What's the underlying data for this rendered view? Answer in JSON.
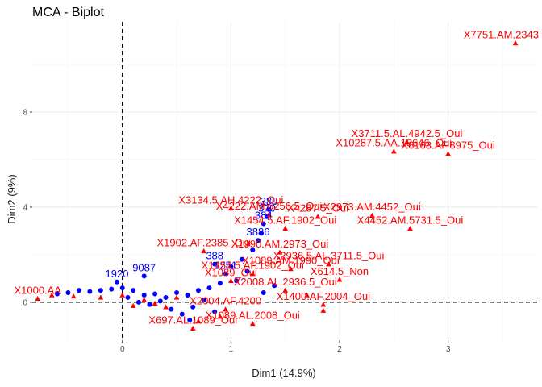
{
  "chart_data": {
    "type": "scatter",
    "title": "MCA - Biplot",
    "xlabel": "Dim1 (14.9%)",
    "ylabel": "Dim2 (9%)",
    "xlim": [
      -0.83,
      3.82
    ],
    "ylim": [
      -1.6,
      11.8
    ],
    "x_ticks": [
      0,
      1,
      2,
      3
    ],
    "y_ticks": [
      0,
      4,
      8
    ],
    "reference_lines": {
      "x": 0,
      "y": 0,
      "style": "dashed"
    },
    "grid": true,
    "legend": "none",
    "colors": {
      "individuals": "#0000ff",
      "variables": "#ff0000"
    },
    "series": [
      {
        "marker": "circle",
        "color": "#0000ff",
        "points": [
          {
            "x": 1.35,
            "y": 3.9,
            "label": "380"
          },
          {
            "x": 1.33,
            "y": 3.6,
            "label": "370"
          },
          {
            "x": 1.3,
            "y": 3.3,
            "label": "384"
          },
          {
            "x": 1.25,
            "y": 2.6,
            "label": "3886"
          },
          {
            "x": 0.2,
            "y": 1.1,
            "label": "9087"
          },
          {
            "x": -0.05,
            "y": 0.85,
            "label": "1920"
          },
          {
            "x": 0.85,
            "y": 1.6,
            "label": "388"
          },
          {
            "x": 0.95,
            "y": 1.2,
            "label": "1251"
          },
          {
            "x": 1.0,
            "y": 1.5,
            "label": ""
          },
          {
            "x": 1.1,
            "y": 1.8,
            "label": ""
          },
          {
            "x": 1.2,
            "y": 2.2,
            "label": ""
          },
          {
            "x": 1.28,
            "y": 2.9,
            "label": ""
          },
          {
            "x": 1.15,
            "y": 1.3,
            "label": ""
          },
          {
            "x": 1.05,
            "y": 0.9,
            "label": ""
          },
          {
            "x": 0.9,
            "y": 0.8,
            "label": ""
          },
          {
            "x": 0.8,
            "y": 0.6,
            "label": ""
          },
          {
            "x": 0.7,
            "y": 0.5,
            "label": ""
          },
          {
            "x": 0.6,
            "y": 0.3,
            "label": ""
          },
          {
            "x": 0.5,
            "y": 0.4,
            "label": ""
          },
          {
            "x": 0.4,
            "y": 0.2,
            "label": ""
          },
          {
            "x": 0.3,
            "y": 0.35,
            "label": ""
          },
          {
            "x": 0.2,
            "y": 0.3,
            "label": ""
          },
          {
            "x": 0.1,
            "y": 0.5,
            "label": ""
          },
          {
            "x": 0.0,
            "y": 0.6,
            "label": ""
          },
          {
            "x": -0.1,
            "y": 0.55,
            "label": ""
          },
          {
            "x": -0.2,
            "y": 0.5,
            "label": ""
          },
          {
            "x": -0.3,
            "y": 0.45,
            "label": ""
          },
          {
            "x": -0.4,
            "y": 0.5,
            "label": ""
          },
          {
            "x": -0.5,
            "y": 0.4,
            "label": ""
          },
          {
            "x": -0.6,
            "y": 0.35,
            "label": ""
          },
          {
            "x": 0.45,
            "y": -0.3,
            "label": ""
          },
          {
            "x": 0.55,
            "y": -0.5,
            "label": ""
          },
          {
            "x": 0.65,
            "y": -0.2,
            "label": ""
          },
          {
            "x": 0.75,
            "y": 0.1,
            "label": ""
          },
          {
            "x": 0.35,
            "y": 0.05,
            "label": ""
          },
          {
            "x": 0.25,
            "y": -0.1,
            "label": ""
          },
          {
            "x": 0.15,
            "y": 0.0,
            "label": ""
          },
          {
            "x": 1.3,
            "y": 0.4,
            "label": ""
          },
          {
            "x": 1.4,
            "y": 0.7,
            "label": ""
          },
          {
            "x": 0.62,
            "y": -0.75,
            "label": ""
          },
          {
            "x": 0.85,
            "y": -0.4,
            "label": ""
          },
          {
            "x": 0.05,
            "y": 0.2,
            "label": ""
          }
        ]
      },
      {
        "marker": "triangle",
        "color": "#ff0000",
        "points": [
          {
            "x": 3.62,
            "y": 10.9,
            "label": "X7751.AM.2343"
          },
          {
            "x": 2.62,
            "y": 6.75,
            "label": "X3711.5.AL.4942.5_Oui"
          },
          {
            "x": 2.5,
            "y": 6.35,
            "label": "X10287.5.AA.13646_Oui"
          },
          {
            "x": 3.0,
            "y": 6.25,
            "label": "X6163.AF.8975_Oui"
          },
          {
            "x": 1.0,
            "y": 3.95,
            "label": "X3134.5.AH.4222_Oui"
          },
          {
            "x": 1.35,
            "y": 3.7,
            "label": "X4222.AM.6256.5_Oui"
          },
          {
            "x": 1.8,
            "y": 3.6,
            "label": "X4287.5_Oui"
          },
          {
            "x": 2.3,
            "y": 3.65,
            "label": "X2973.AM.4452_Oui"
          },
          {
            "x": 1.5,
            "y": 3.1,
            "label": "X1454.5.AF.1902_Oui"
          },
          {
            "x": 2.65,
            "y": 3.1,
            "label": "X4452.AM.5731.5_Oui"
          },
          {
            "x": 0.75,
            "y": 2.15,
            "label": "X1902.AF.2385_Oui"
          },
          {
            "x": 1.45,
            "y": 2.1,
            "label": "X1990.AM.2973_Oui"
          },
          {
            "x": 1.9,
            "y": 1.6,
            "label": "X2936.5.AL.3711.5_Oui"
          },
          {
            "x": 1.55,
            "y": 1.4,
            "label": "X1089.AM.1990_Oui"
          },
          {
            "x": 1.2,
            "y": 1.2,
            "label": "X1454.5.AF.1902_Oui"
          },
          {
            "x": 2.0,
            "y": 0.95,
            "label": "X614.5_Non"
          },
          {
            "x": 1.0,
            "y": 0.9,
            "label": "X1089_Oui"
          },
          {
            "x": 1.5,
            "y": 0.5,
            "label": "X2008.AL.2936.5_Oui"
          },
          {
            "x": 1.85,
            "y": -0.1,
            "label": "X1400.AF.2004_Oui"
          },
          {
            "x": 0.95,
            "y": -0.3,
            "label": "X2004.AF.4200"
          },
          {
            "x": 1.2,
            "y": -0.9,
            "label": "X1089.AL.2008_Oui"
          },
          {
            "x": 0.65,
            "y": -1.1,
            "label": "X697.AL.1089_Oui"
          },
          {
            "x": -0.78,
            "y": 0.15,
            "label": "X1000.AA"
          },
          {
            "x": 1.85,
            "y": -0.35,
            "label": ""
          },
          {
            "x": 0.7,
            "y": -0.8,
            "label": ""
          },
          {
            "x": 0.9,
            "y": -0.6,
            "label": ""
          },
          {
            "x": 0.4,
            "y": -0.2,
            "label": ""
          },
          {
            "x": 0.2,
            "y": 0.1,
            "label": ""
          },
          {
            "x": 0.0,
            "y": 0.3,
            "label": ""
          },
          {
            "x": -0.2,
            "y": 0.2,
            "label": ""
          },
          {
            "x": -0.45,
            "y": 0.25,
            "label": ""
          },
          {
            "x": -0.65,
            "y": 0.3,
            "label": ""
          },
          {
            "x": 0.5,
            "y": 0.2,
            "label": ""
          },
          {
            "x": 0.3,
            "y": -0.05,
            "label": ""
          },
          {
            "x": 1.7,
            "y": 0.3,
            "label": ""
          },
          {
            "x": 0.1,
            "y": -0.15,
            "label": ""
          }
        ]
      }
    ]
  }
}
